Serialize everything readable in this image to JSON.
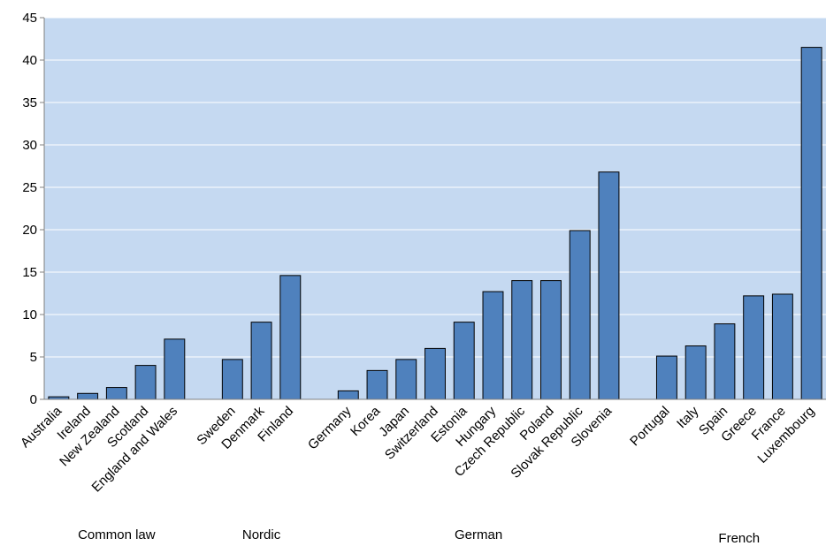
{
  "chart_data": {
    "type": "bar",
    "title": "",
    "xlabel": "",
    "ylabel": "",
    "ylim": [
      0,
      45
    ],
    "yticks": [
      0,
      5,
      10,
      15,
      20,
      25,
      30,
      35,
      40,
      45
    ],
    "grid": true,
    "legend": "none",
    "colors": {
      "bar": "#4f81bd",
      "bar_outline": "#000000",
      "plot_background": "#c5d9f1",
      "gridline": "#ffffff"
    },
    "groups": [
      {
        "name": "Common law",
        "categories": [
          "Australia",
          "Ireland",
          "New Zealand",
          "Scotland",
          "England and Wales"
        ],
        "values": [
          0.3,
          0.7,
          1.4,
          4.0,
          7.1
        ]
      },
      {
        "name": "Nordic",
        "categories": [
          "Sweden",
          "Denmark",
          "Finland"
        ],
        "values": [
          4.7,
          9.1,
          14.6
        ]
      },
      {
        "name": "German",
        "categories": [
          "Germany",
          "Korea",
          "Japan",
          "Switzerland",
          "Estonia",
          "Hungary",
          "Czech Republic",
          "Poland",
          "Slovak Republic",
          "Slovenia"
        ],
        "values": [
          1.0,
          3.4,
          4.7,
          6.0,
          9.1,
          12.7,
          14.0,
          14.0,
          19.9,
          26.8
        ]
      },
      {
        "name": "French",
        "categories": [
          "Portugal",
          "Italy",
          "Spain",
          "Greece",
          "France",
          "Luxembourg"
        ],
        "values": [
          5.1,
          6.3,
          8.9,
          12.2,
          12.4,
          41.5
        ]
      }
    ]
  }
}
